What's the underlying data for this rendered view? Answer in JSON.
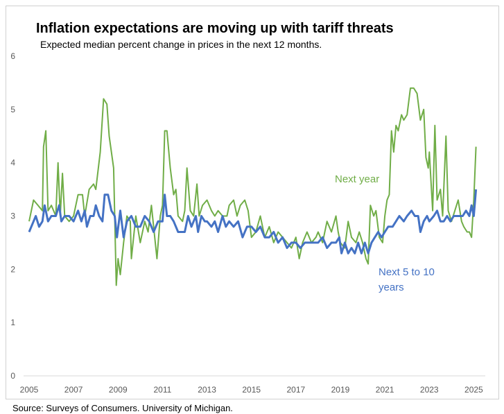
{
  "chart_data": {
    "type": "line",
    "title": "Inflation expectations are moving up with tariff threats",
    "subtitle": "Expected median percent change in prices in the next 12 months.",
    "source": "Surveys of Consumers. University of Michigan.",
    "xlabel": "",
    "ylabel": "",
    "xlim": [
      2005,
      2025.25
    ],
    "ylim": [
      0,
      6
    ],
    "xticks": [
      2005,
      2007,
      2009,
      2011,
      2013,
      2015,
      2017,
      2019,
      2021,
      2023,
      2025
    ],
    "yticks": [
      0,
      1,
      2,
      3,
      4,
      5,
      6
    ],
    "grid": false,
    "series": [
      {
        "name": "Next year",
        "color": "#70ad47",
        "points": [
          [
            2005.0,
            2.9
          ],
          [
            2005.2,
            3.3
          ],
          [
            2005.4,
            3.2
          ],
          [
            2005.6,
            3.1
          ],
          [
            2005.65,
            4.3
          ],
          [
            2005.75,
            4.6
          ],
          [
            2005.85,
            3.1
          ],
          [
            2006.0,
            3.2
          ],
          [
            2006.2,
            3.0
          ],
          [
            2006.3,
            4.0
          ],
          [
            2006.4,
            3.0
          ],
          [
            2006.5,
            3.8
          ],
          [
            2006.6,
            3.0
          ],
          [
            2006.8,
            2.9
          ],
          [
            2007.0,
            3.0
          ],
          [
            2007.2,
            3.4
          ],
          [
            2007.4,
            3.4
          ],
          [
            2007.5,
            3.0
          ],
          [
            2007.7,
            3.5
          ],
          [
            2007.9,
            3.6
          ],
          [
            2008.0,
            3.5
          ],
          [
            2008.2,
            4.2
          ],
          [
            2008.35,
            5.2
          ],
          [
            2008.5,
            5.1
          ],
          [
            2008.6,
            4.5
          ],
          [
            2008.8,
            3.9
          ],
          [
            2008.92,
            1.7
          ],
          [
            2009.0,
            2.2
          ],
          [
            2009.1,
            1.9
          ],
          [
            2009.25,
            2.5
          ],
          [
            2009.4,
            3.0
          ],
          [
            2009.55,
            2.9
          ],
          [
            2009.6,
            2.2
          ],
          [
            2009.8,
            3.0
          ],
          [
            2010.0,
            2.5
          ],
          [
            2010.2,
            2.9
          ],
          [
            2010.35,
            2.7
          ],
          [
            2010.5,
            3.2
          ],
          [
            2010.6,
            2.8
          ],
          [
            2010.75,
            2.2
          ],
          [
            2010.9,
            3.0
          ],
          [
            2011.0,
            3.2
          ],
          [
            2011.1,
            4.6
          ],
          [
            2011.2,
            4.6
          ],
          [
            2011.35,
            3.9
          ],
          [
            2011.5,
            3.4
          ],
          [
            2011.6,
            3.5
          ],
          [
            2011.7,
            3.0
          ],
          [
            2011.9,
            2.9
          ],
          [
            2012.0,
            3.1
          ],
          [
            2012.1,
            3.9
          ],
          [
            2012.25,
            3.1
          ],
          [
            2012.4,
            3.0
          ],
          [
            2012.55,
            3.6
          ],
          [
            2012.65,
            3.0
          ],
          [
            2012.8,
            3.2
          ],
          [
            2013.0,
            3.3
          ],
          [
            2013.2,
            3.1
          ],
          [
            2013.35,
            3.0
          ],
          [
            2013.5,
            3.1
          ],
          [
            2013.7,
            3.0
          ],
          [
            2013.9,
            3.0
          ],
          [
            2014.0,
            3.2
          ],
          [
            2014.2,
            3.3
          ],
          [
            2014.35,
            3.0
          ],
          [
            2014.5,
            3.2
          ],
          [
            2014.7,
            3.3
          ],
          [
            2014.85,
            3.1
          ],
          [
            2015.0,
            2.6
          ],
          [
            2015.2,
            2.7
          ],
          [
            2015.4,
            3.0
          ],
          [
            2015.6,
            2.6
          ],
          [
            2015.8,
            2.8
          ],
          [
            2016.0,
            2.5
          ],
          [
            2016.2,
            2.7
          ],
          [
            2016.4,
            2.6
          ],
          [
            2016.6,
            2.5
          ],
          [
            2016.8,
            2.4
          ],
          [
            2017.0,
            2.6
          ],
          [
            2017.15,
            2.2
          ],
          [
            2017.3,
            2.5
          ],
          [
            2017.5,
            2.7
          ],
          [
            2017.7,
            2.5
          ],
          [
            2017.9,
            2.6
          ],
          [
            2018.0,
            2.7
          ],
          [
            2018.2,
            2.5
          ],
          [
            2018.4,
            2.9
          ],
          [
            2018.6,
            2.7
          ],
          [
            2018.8,
            3.0
          ],
          [
            2018.9,
            2.7
          ],
          [
            2019.0,
            2.5
          ],
          [
            2019.2,
            2.4
          ],
          [
            2019.35,
            2.9
          ],
          [
            2019.5,
            2.6
          ],
          [
            2019.7,
            2.5
          ],
          [
            2019.85,
            2.7
          ],
          [
            2020.0,
            2.5
          ],
          [
            2020.15,
            2.2
          ],
          [
            2020.25,
            2.1
          ],
          [
            2020.35,
            3.2
          ],
          [
            2020.5,
            3.0
          ],
          [
            2020.6,
            3.1
          ],
          [
            2020.75,
            2.6
          ],
          [
            2020.9,
            2.5
          ],
          [
            2021.0,
            3.0
          ],
          [
            2021.1,
            3.3
          ],
          [
            2021.2,
            3.4
          ],
          [
            2021.3,
            4.6
          ],
          [
            2021.4,
            4.2
          ],
          [
            2021.5,
            4.7
          ],
          [
            2021.6,
            4.6
          ],
          [
            2021.75,
            4.9
          ],
          [
            2021.85,
            4.8
          ],
          [
            2022.0,
            4.9
          ],
          [
            2022.15,
            5.4
          ],
          [
            2022.3,
            5.4
          ],
          [
            2022.45,
            5.3
          ],
          [
            2022.6,
            4.8
          ],
          [
            2022.75,
            5.0
          ],
          [
            2022.85,
            4.1
          ],
          [
            2022.95,
            3.9
          ],
          [
            2023.0,
            4.2
          ],
          [
            2023.15,
            3.1
          ],
          [
            2023.25,
            4.7
          ],
          [
            2023.35,
            3.3
          ],
          [
            2023.5,
            3.5
          ],
          [
            2023.6,
            3.0
          ],
          [
            2023.75,
            4.5
          ],
          [
            2023.85,
            3.1
          ],
          [
            2024.0,
            2.9
          ],
          [
            2024.15,
            3.1
          ],
          [
            2024.3,
            3.3
          ],
          [
            2024.45,
            2.9
          ],
          [
            2024.55,
            2.8
          ],
          [
            2024.7,
            2.7
          ],
          [
            2024.8,
            2.7
          ],
          [
            2024.9,
            2.6
          ],
          [
            2025.0,
            3.3
          ],
          [
            2025.1,
            4.3
          ]
        ]
      },
      {
        "name": "Next 5 to 10 years",
        "color": "#4472c4",
        "points": [
          [
            2005.0,
            2.7
          ],
          [
            2005.2,
            2.9
          ],
          [
            2005.3,
            3.0
          ],
          [
            2005.45,
            2.8
          ],
          [
            2005.6,
            2.9
          ],
          [
            2005.7,
            3.2
          ],
          [
            2005.85,
            2.9
          ],
          [
            2006.0,
            3.0
          ],
          [
            2006.2,
            3.0
          ],
          [
            2006.35,
            3.2
          ],
          [
            2006.45,
            2.9
          ],
          [
            2006.6,
            3.0
          ],
          [
            2006.8,
            3.0
          ],
          [
            2007.0,
            2.9
          ],
          [
            2007.2,
            3.1
          ],
          [
            2007.35,
            2.9
          ],
          [
            2007.5,
            3.1
          ],
          [
            2007.6,
            2.8
          ],
          [
            2007.75,
            3.0
          ],
          [
            2007.9,
            3.0
          ],
          [
            2008.0,
            3.2
          ],
          [
            2008.15,
            3.0
          ],
          [
            2008.3,
            2.9
          ],
          [
            2008.4,
            3.4
          ],
          [
            2008.55,
            3.4
          ],
          [
            2008.7,
            3.1
          ],
          [
            2008.85,
            3.0
          ],
          [
            2008.95,
            2.6
          ],
          [
            2009.1,
            3.1
          ],
          [
            2009.25,
            2.6
          ],
          [
            2009.4,
            2.9
          ],
          [
            2009.6,
            3.0
          ],
          [
            2009.8,
            2.8
          ],
          [
            2010.0,
            2.8
          ],
          [
            2010.2,
            3.0
          ],
          [
            2010.4,
            2.9
          ],
          [
            2010.6,
            2.7
          ],
          [
            2010.8,
            2.9
          ],
          [
            2011.0,
            2.9
          ],
          [
            2011.1,
            3.4
          ],
          [
            2011.2,
            3.0
          ],
          [
            2011.35,
            3.0
          ],
          [
            2011.5,
            2.9
          ],
          [
            2011.7,
            2.7
          ],
          [
            2011.9,
            2.7
          ],
          [
            2012.0,
            2.7
          ],
          [
            2012.15,
            3.0
          ],
          [
            2012.3,
            2.8
          ],
          [
            2012.5,
            3.0
          ],
          [
            2012.6,
            2.7
          ],
          [
            2012.75,
            3.0
          ],
          [
            2012.9,
            2.9
          ],
          [
            2013.0,
            2.9
          ],
          [
            2013.2,
            2.8
          ],
          [
            2013.35,
            2.9
          ],
          [
            2013.5,
            2.7
          ],
          [
            2013.7,
            3.0
          ],
          [
            2013.85,
            2.8
          ],
          [
            2014.0,
            2.9
          ],
          [
            2014.2,
            2.8
          ],
          [
            2014.4,
            2.9
          ],
          [
            2014.6,
            2.6
          ],
          [
            2014.8,
            2.8
          ],
          [
            2015.0,
            2.8
          ],
          [
            2015.2,
            2.7
          ],
          [
            2015.4,
            2.8
          ],
          [
            2015.6,
            2.6
          ],
          [
            2015.8,
            2.6
          ],
          [
            2016.0,
            2.7
          ],
          [
            2016.2,
            2.5
          ],
          [
            2016.4,
            2.6
          ],
          [
            2016.6,
            2.4
          ],
          [
            2016.8,
            2.5
          ],
          [
            2017.0,
            2.5
          ],
          [
            2017.2,
            2.4
          ],
          [
            2017.4,
            2.5
          ],
          [
            2017.6,
            2.5
          ],
          [
            2017.8,
            2.5
          ],
          [
            2018.0,
            2.5
          ],
          [
            2018.2,
            2.6
          ],
          [
            2018.4,
            2.4
          ],
          [
            2018.6,
            2.5
          ],
          [
            2018.8,
            2.5
          ],
          [
            2018.95,
            2.6
          ],
          [
            2019.05,
            2.3
          ],
          [
            2019.2,
            2.5
          ],
          [
            2019.35,
            2.3
          ],
          [
            2019.5,
            2.4
          ],
          [
            2019.65,
            2.3
          ],
          [
            2019.8,
            2.5
          ],
          [
            2019.95,
            2.3
          ],
          [
            2020.1,
            2.5
          ],
          [
            2020.25,
            2.3
          ],
          [
            2020.4,
            2.5
          ],
          [
            2020.55,
            2.6
          ],
          [
            2020.7,
            2.7
          ],
          [
            2020.85,
            2.6
          ],
          [
            2021.0,
            2.7
          ],
          [
            2021.15,
            2.8
          ],
          [
            2021.35,
            2.8
          ],
          [
            2021.5,
            2.9
          ],
          [
            2021.65,
            3.0
          ],
          [
            2021.85,
            2.9
          ],
          [
            2022.0,
            3.0
          ],
          [
            2022.2,
            3.1
          ],
          [
            2022.35,
            3.0
          ],
          [
            2022.5,
            3.0
          ],
          [
            2022.6,
            2.7
          ],
          [
            2022.75,
            2.9
          ],
          [
            2022.9,
            3.0
          ],
          [
            2023.0,
            2.9
          ],
          [
            2023.2,
            3.0
          ],
          [
            2023.35,
            3.1
          ],
          [
            2023.5,
            2.9
          ],
          [
            2023.65,
            2.9
          ],
          [
            2023.8,
            3.0
          ],
          [
            2023.95,
            2.9
          ],
          [
            2024.1,
            3.0
          ],
          [
            2024.3,
            3.0
          ],
          [
            2024.5,
            3.0
          ],
          [
            2024.65,
            3.1
          ],
          [
            2024.8,
            3.0
          ],
          [
            2024.9,
            3.2
          ],
          [
            2025.0,
            3.0
          ],
          [
            2025.1,
            3.5
          ]
        ]
      }
    ],
    "annotations": [
      {
        "text": "Next year",
        "series": "Next year"
      },
      {
        "text": "Next 5 to 10",
        "series": "Next 5 to 10 years"
      },
      {
        "text": "years",
        "series": "Next 5 to 10 years"
      }
    ]
  }
}
